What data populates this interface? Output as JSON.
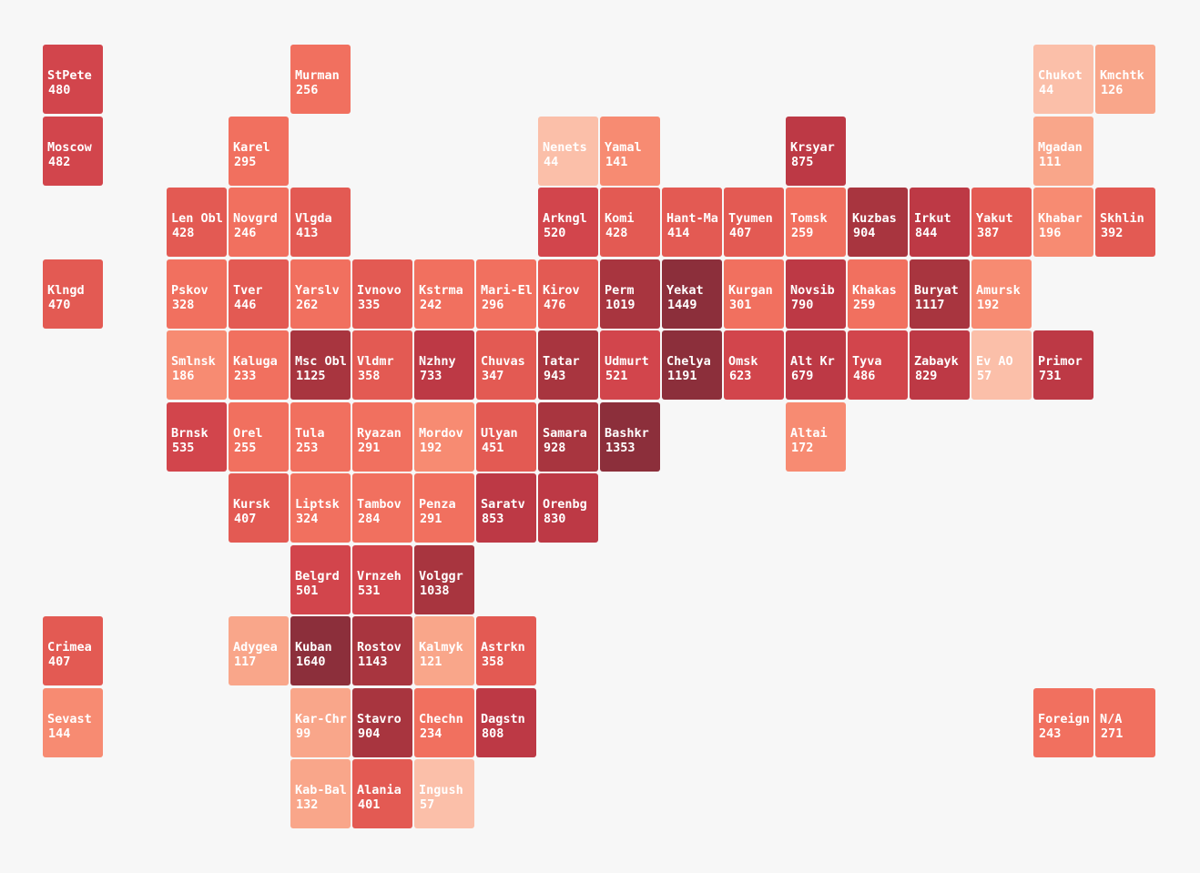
{
  "map": {
    "regions": [
      {
        "code": "StPete",
        "value": 480
      },
      {
        "code": "Moscow",
        "value": 482
      },
      {
        "code": "Klngd",
        "value": 470
      },
      {
        "code": "Crimea",
        "value": 407
      },
      {
        "code": "Sevast",
        "value": 144
      },
      {
        "code": "Len Obl",
        "value": 428
      },
      {
        "code": "Pskov",
        "value": 328
      },
      {
        "code": "Smlnsk",
        "value": 186
      },
      {
        "code": "Brnsk",
        "value": 535
      },
      {
        "code": "Karel",
        "value": 295
      },
      {
        "code": "Novgrd",
        "value": 246
      },
      {
        "code": "Tver",
        "value": 446
      },
      {
        "code": "Kaluga",
        "value": 233
      },
      {
        "code": "Orel",
        "value": 255
      },
      {
        "code": "Kursk",
        "value": 407
      },
      {
        "code": "Adygea",
        "value": 117
      },
      {
        "code": "Murman",
        "value": 256
      },
      {
        "code": "Vlgda",
        "value": 413
      },
      {
        "code": "Yarslv",
        "value": 262
      },
      {
        "code": "Msc Obl",
        "value": 1125
      },
      {
        "code": "Tula",
        "value": 253
      },
      {
        "code": "Liptsk",
        "value": 324
      },
      {
        "code": "Belgrd",
        "value": 501
      },
      {
        "code": "Kuban",
        "value": 1640
      },
      {
        "code": "Kar-Chr",
        "value": 99
      },
      {
        "code": "Kab-Bal",
        "value": 132
      },
      {
        "code": "Ivnovo",
        "value": 335
      },
      {
        "code": "Vldmr",
        "value": 358
      },
      {
        "code": "Ryazan",
        "value": 291
      },
      {
        "code": "Tambov",
        "value": 284
      },
      {
        "code": "Vrnzeh",
        "value": 531
      },
      {
        "code": "Rostov",
        "value": 1143
      },
      {
        "code": "Stavro",
        "value": 904
      },
      {
        "code": "Alania",
        "value": 401
      },
      {
        "code": "Kstrma",
        "value": 242
      },
      {
        "code": "Nzhny",
        "value": 733
      },
      {
        "code": "Mordov",
        "value": 192
      },
      {
        "code": "Penza",
        "value": 291
      },
      {
        "code": "Volggr",
        "value": 1038
      },
      {
        "code": "Kalmyk",
        "value": 121
      },
      {
        "code": "Chechn",
        "value": 234
      },
      {
        "code": "Ingush",
        "value": 57
      },
      {
        "code": "Mari-El",
        "value": 296
      },
      {
        "code": "Chuvas",
        "value": 347
      },
      {
        "code": "Ulyan",
        "value": 451
      },
      {
        "code": "Saratv",
        "value": 853
      },
      {
        "code": "Astrkn",
        "value": 358
      },
      {
        "code": "Dagstn",
        "value": 808
      },
      {
        "code": "Nenets",
        "value": 44
      },
      {
        "code": "Arkngl",
        "value": 520
      },
      {
        "code": "Kirov",
        "value": 476
      },
      {
        "code": "Tatar",
        "value": 943
      },
      {
        "code": "Samara",
        "value": 928
      },
      {
        "code": "Orenbg",
        "value": 830
      },
      {
        "code": "Yamal",
        "value": 141
      },
      {
        "code": "Komi",
        "value": 428
      },
      {
        "code": "Perm",
        "value": 1019
      },
      {
        "code": "Udmurt",
        "value": 521
      },
      {
        "code": "Bashkr",
        "value": 1353
      },
      {
        "code": "Hant-Ma",
        "value": 414
      },
      {
        "code": "Yekat",
        "value": 1449
      },
      {
        "code": "Chelya",
        "value": 1191
      },
      {
        "code": "Tyumen",
        "value": 407
      },
      {
        "code": "Kurgan",
        "value": 301
      },
      {
        "code": "Omsk",
        "value": 623
      },
      {
        "code": "Krsyar",
        "value": 875
      },
      {
        "code": "Tomsk",
        "value": 259
      },
      {
        "code": "Novsib",
        "value": 790
      },
      {
        "code": "Alt Kr",
        "value": 679
      },
      {
        "code": "Altai",
        "value": 172
      },
      {
        "code": "Kuzbas",
        "value": 904
      },
      {
        "code": "Khakas",
        "value": 259
      },
      {
        "code": "Tyva",
        "value": 486
      },
      {
        "code": "Irkut",
        "value": 844
      },
      {
        "code": "Buryat",
        "value": 1117
      },
      {
        "code": "Zabayk",
        "value": 829
      },
      {
        "code": "Yakut",
        "value": 387
      },
      {
        "code": "Amursk",
        "value": 192
      },
      {
        "code": "Ev AO",
        "value": 57
      },
      {
        "code": "Chukot",
        "value": 44
      },
      {
        "code": "Mgadan",
        "value": 111
      },
      {
        "code": "Khabar",
        "value": 196
      },
      {
        "code": "Primor",
        "value": 731
      },
      {
        "code": "Foreign",
        "value": 243
      },
      {
        "code": "Kmchtk",
        "value": 126
      },
      {
        "code": "Skhlin",
        "value": 392
      },
      {
        "code": "N/A",
        "value": 271
      }
    ]
  },
  "colors": {
    "scale": [
      "#fcd3c6",
      "#fbbfa9",
      "#f9a68a",
      "#f78b72",
      "#f1705f",
      "#e35a53",
      "#d2454c",
      "#bd3945",
      "#a8353f",
      "#8c2f3b"
    ],
    "background": "#f7f7f7",
    "text": "#ffffff"
  }
}
